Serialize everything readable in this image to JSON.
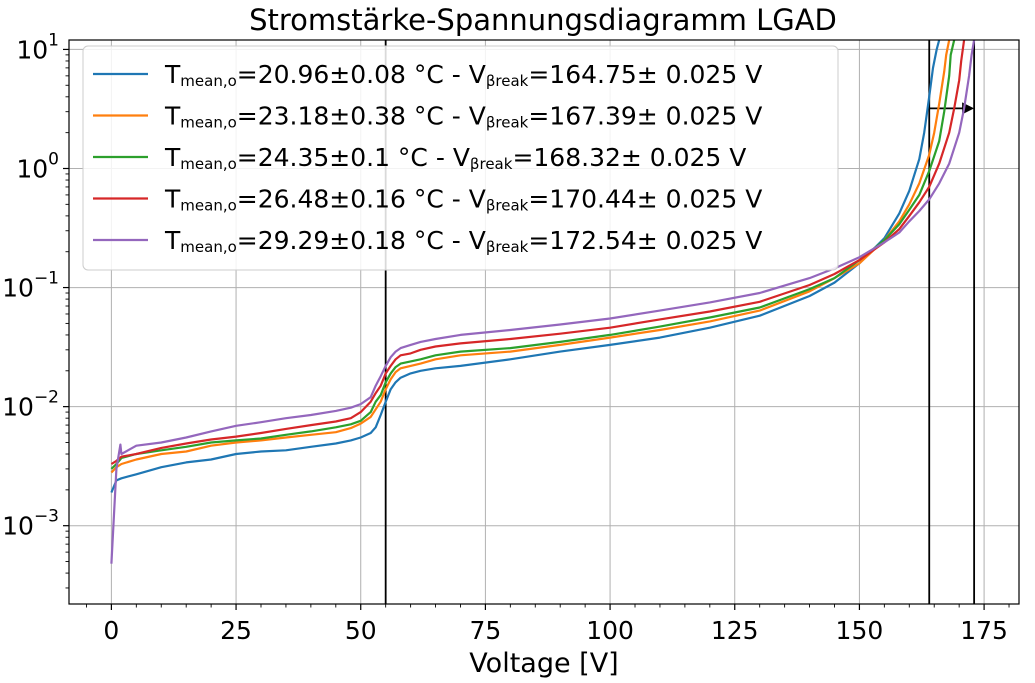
{
  "chart_data": {
    "type": "line",
    "title": "Stromstärke-Spannungsdiagramm LGAD",
    "xlabel": "Voltage [V]",
    "ylabel": "",
    "xlim": [
      -8.5,
      182
    ],
    "ylim": [
      0.00022,
      12
    ],
    "yscale": "log",
    "grid": true,
    "legend_position": "upper-left",
    "x_ticks": [
      0,
      25,
      50,
      75,
      100,
      125,
      150,
      175
    ],
    "x_tick_labels": [
      "0",
      "25",
      "50",
      "75",
      "100",
      "125",
      "150",
      "175"
    ],
    "y_ticks": [
      {
        "value": 0.001,
        "base": "10",
        "exp": "−3"
      },
      {
        "value": 0.01,
        "base": "10",
        "exp": "−2"
      },
      {
        "value": 0.1,
        "base": "10",
        "exp": "−1"
      },
      {
        "value": 1,
        "base": "10",
        "exp": "0"
      },
      {
        "value": 10,
        "base": "10",
        "exp": "1"
      }
    ],
    "series": [
      {
        "name": "Tmean,o=20.96±0.08 °C - Vβreak=164.75± 0.025 V",
        "label_parts": {
          "t_main": "T",
          "t_sub": "mean,o",
          "t_val": "=20.96±0.08 °C - ",
          "v_main": "V",
          "v_sub": "βreak",
          "v_val": "=164.75± 0.025 V"
        },
        "color": "#1f77b4",
        "x": [
          0,
          1,
          2,
          5,
          10,
          15,
          20,
          25,
          30,
          35,
          40,
          45,
          48,
          50,
          52,
          53,
          54,
          55,
          56,
          57,
          58,
          60,
          62,
          65,
          70,
          80,
          90,
          100,
          110,
          120,
          130,
          140,
          145,
          150,
          155,
          158,
          160,
          162,
          163,
          164,
          164.75,
          165.5,
          166
        ],
        "y": [
          0.0019,
          0.0024,
          0.0025,
          0.0027,
          0.0031,
          0.0034,
          0.0036,
          0.004,
          0.0042,
          0.0043,
          0.0046,
          0.0049,
          0.0052,
          0.0055,
          0.006,
          0.0067,
          0.0085,
          0.011,
          0.014,
          0.016,
          0.0175,
          0.019,
          0.02,
          0.021,
          0.022,
          0.025,
          0.029,
          0.033,
          0.038,
          0.046,
          0.058,
          0.085,
          0.11,
          0.16,
          0.26,
          0.42,
          0.65,
          1.2,
          2.0,
          4.0,
          7.0,
          10,
          12
        ]
      },
      {
        "name": "Tmean,o=23.18±0.38 °C - Vβreak=167.39± 0.025 V",
        "label_parts": {
          "t_main": "T",
          "t_sub": "mean,o",
          "t_val": "=23.18±0.38 °C - ",
          "v_main": "V",
          "v_sub": "βreak",
          "v_val": "=167.39± 0.025 V"
        },
        "color": "#ff7f0e",
        "x": [
          0,
          1,
          2,
          5,
          10,
          15,
          20,
          25,
          30,
          35,
          40,
          45,
          48,
          50,
          52,
          53,
          54,
          55,
          56,
          57,
          58,
          60,
          62,
          65,
          70,
          80,
          90,
          100,
          110,
          120,
          130,
          140,
          145,
          150,
          155,
          158,
          160,
          162,
          164,
          165,
          166,
          167,
          167.4,
          168
        ],
        "y": [
          0.0028,
          0.0031,
          0.0033,
          0.0036,
          0.004,
          0.0042,
          0.0047,
          0.005,
          0.0052,
          0.0055,
          0.0058,
          0.0061,
          0.0066,
          0.0072,
          0.0082,
          0.0095,
          0.011,
          0.014,
          0.017,
          0.0195,
          0.021,
          0.022,
          0.023,
          0.025,
          0.027,
          0.029,
          0.033,
          0.038,
          0.044,
          0.052,
          0.064,
          0.093,
          0.12,
          0.16,
          0.25,
          0.36,
          0.5,
          0.75,
          1.3,
          2.0,
          3.5,
          6.5,
          9.0,
          12
        ]
      },
      {
        "name": "Tmean,o=24.35±0.1 °C - Vβreak=168.32± 0.025 V",
        "label_parts": {
          "t_main": "T",
          "t_sub": "mean,o",
          "t_val": "=24.35±0.1 °C - ",
          "v_main": "V",
          "v_sub": "βreak",
          "v_val": "=168.32± 0.025 V"
        },
        "color": "#2ca02c",
        "x": [
          0,
          1,
          2,
          5,
          10,
          15,
          20,
          25,
          30,
          35,
          40,
          45,
          48,
          50,
          52,
          53,
          54,
          55,
          56,
          57,
          58,
          60,
          62,
          65,
          70,
          80,
          90,
          100,
          110,
          120,
          130,
          140,
          145,
          150,
          155,
          158,
          160,
          162,
          164,
          166,
          167,
          168,
          168.3,
          169
        ],
        "y": [
          0.003,
          0.0033,
          0.0037,
          0.004,
          0.0043,
          0.0046,
          0.005,
          0.0052,
          0.0054,
          0.0058,
          0.0062,
          0.0067,
          0.0071,
          0.0076,
          0.009,
          0.011,
          0.0125,
          0.016,
          0.019,
          0.0215,
          0.023,
          0.024,
          0.025,
          0.027,
          0.029,
          0.031,
          0.035,
          0.04,
          0.047,
          0.056,
          0.068,
          0.097,
          0.12,
          0.17,
          0.25,
          0.34,
          0.45,
          0.6,
          0.95,
          1.7,
          3.0,
          6.0,
          9.0,
          12
        ]
      },
      {
        "name": "Tmean,o=26.48±0.16 °C - Vβreak=170.44± 0.025 V",
        "label_parts": {
          "t_main": "T",
          "t_sub": "mean,o",
          "t_val": "=26.48±0.16 °C - ",
          "v_main": "V",
          "v_sub": "βreak",
          "v_val": "=170.44± 0.025 V"
        },
        "color": "#d62728",
        "x": [
          0,
          1,
          2,
          5,
          10,
          15,
          20,
          25,
          30,
          35,
          40,
          45,
          48,
          50,
          52,
          53,
          54,
          55,
          56,
          57,
          58,
          60,
          62,
          65,
          70,
          80,
          90,
          100,
          110,
          120,
          130,
          140,
          145,
          150,
          155,
          158,
          160,
          162,
          164,
          166,
          168,
          169,
          170,
          170.4,
          171
        ],
        "y": [
          0.0033,
          0.0035,
          0.0038,
          0.004,
          0.0045,
          0.0049,
          0.0053,
          0.0056,
          0.006,
          0.0065,
          0.007,
          0.0075,
          0.008,
          0.009,
          0.011,
          0.013,
          0.015,
          0.019,
          0.022,
          0.025,
          0.027,
          0.028,
          0.03,
          0.032,
          0.034,
          0.037,
          0.041,
          0.046,
          0.054,
          0.063,
          0.076,
          0.105,
          0.13,
          0.17,
          0.24,
          0.31,
          0.4,
          0.52,
          0.7,
          1.1,
          2.0,
          3.2,
          5.5,
          8.0,
          12
        ]
      },
      {
        "name": "Tmean,o=29.29±0.18 °C - Vβreak=172.54± 0.025 V",
        "label_parts": {
          "t_main": "T",
          "t_sub": "mean,o",
          "t_val": "=29.29±0.18 °C - ",
          "v_main": "V",
          "v_sub": "βreak",
          "v_val": "=172.54± 0.025 V"
        },
        "color": "#9467bd",
        "x": [
          0,
          0.5,
          1,
          1.8,
          2,
          5,
          10,
          15,
          20,
          25,
          30,
          35,
          40,
          45,
          48,
          50,
          52,
          53,
          54,
          55,
          56,
          57,
          58,
          60,
          62,
          65,
          70,
          80,
          90,
          100,
          110,
          120,
          130,
          140,
          145,
          150,
          155,
          158,
          160,
          162,
          164,
          166,
          168,
          170,
          171,
          172,
          172.5,
          173
        ],
        "y": [
          0.00048,
          0.0012,
          0.003,
          0.0048,
          0.004,
          0.0047,
          0.005,
          0.0055,
          0.0062,
          0.0069,
          0.0074,
          0.008,
          0.0085,
          0.0092,
          0.0098,
          0.0105,
          0.012,
          0.015,
          0.018,
          0.022,
          0.026,
          0.029,
          0.031,
          0.033,
          0.035,
          0.037,
          0.04,
          0.044,
          0.049,
          0.055,
          0.064,
          0.075,
          0.09,
          0.12,
          0.145,
          0.18,
          0.24,
          0.29,
          0.36,
          0.44,
          0.55,
          0.75,
          1.1,
          2.0,
          3.2,
          6.0,
          9.0,
          12
        ]
      }
    ],
    "annotations": [
      {
        "type": "vertical-line",
        "x": 55
      },
      {
        "type": "vertical-line",
        "x": 164
      },
      {
        "type": "vertical-line",
        "x": 173
      },
      {
        "type": "arrow",
        "from_x": 164,
        "to_x": 173,
        "y": 3.2
      }
    ]
  }
}
